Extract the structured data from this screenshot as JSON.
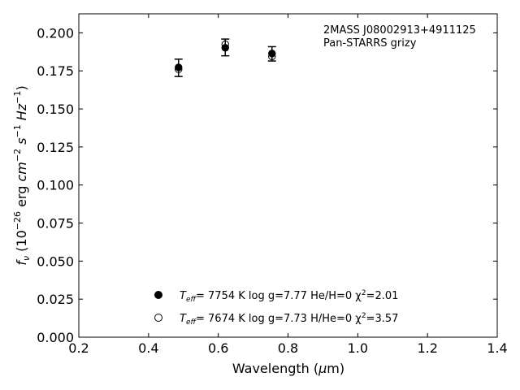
{
  "chart_data": {
    "type": "scatter",
    "annotation": {
      "line1": "2MASS J08002913+4911125",
      "line2": "Pan-STARRS grizy"
    },
    "xlabel": {
      "main": "Wavelength (",
      "mu": "μ",
      "tail": "m)"
    },
    "ylabel": {
      "f": "f",
      "nu": "ν",
      "open": " (10",
      "exp1": "−26",
      "erg": " erg ",
      "cm": "cm",
      "exp2": "−2",
      "s": " s",
      "exp3": "−1",
      "hz": " Hz",
      "exp4": "−1",
      "close": ")"
    },
    "xlim": [
      0.2,
      1.4
    ],
    "ylim": [
      0.0,
      0.2125
    ],
    "xticks": [
      0.2,
      0.4,
      0.6,
      0.8,
      1.0,
      1.2,
      1.4
    ],
    "xtick_labels": [
      "0.2",
      "0.4",
      "0.6",
      "0.8",
      "1.0",
      "1.2",
      "1.4"
    ],
    "yticks": [
      0.0,
      0.025,
      0.05,
      0.075,
      0.1,
      0.125,
      0.15,
      0.175,
      0.2
    ],
    "ytick_labels": [
      "0.000",
      "0.025",
      "0.050",
      "0.075",
      "0.100",
      "0.125",
      "0.150",
      "0.175",
      "0.200"
    ],
    "observed": {
      "x": [
        0.486,
        0.62,
        0.754
      ],
      "y": [
        0.177,
        0.1904,
        0.1862
      ],
      "err": [
        0.0057,
        0.0055,
        0.0047
      ]
    },
    "series": [
      {
        "marker": "filled",
        "x": [
          0.486,
          0.62,
          0.754
        ],
        "y": [
          0.1773,
          0.1902,
          0.1864
        ],
        "legend": {
          "t": "T",
          "sub": "eff",
          "rest": "=  7754 K  log g=7.77  He/H=0  χ",
          "sup": "2",
          "end": "=2.01"
        }
      },
      {
        "marker": "open",
        "x": [
          0.486,
          0.62,
          0.754
        ],
        "y": [
          0.176,
          0.1925,
          0.1845
        ],
        "legend": {
          "t": "T",
          "sub": "eff",
          "rest": "=  7674 K  log g=7.73  H/He=0  χ",
          "sup": "2",
          "end": "=3.57"
        }
      }
    ],
    "legend_position": "lower-center",
    "grid": false
  }
}
